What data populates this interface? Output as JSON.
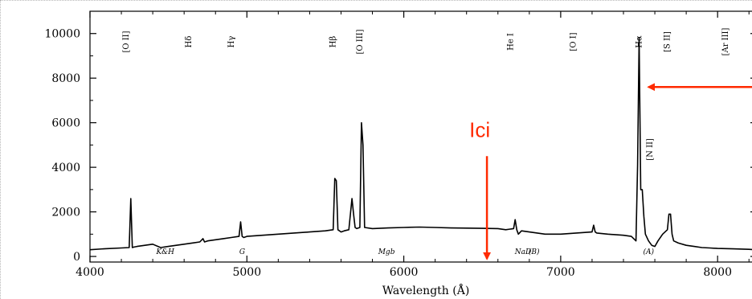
{
  "chart_data": {
    "type": "line",
    "xlabel": "Wavelength (Å)",
    "ylabel": "",
    "xlim": [
      4000,
      8250
    ],
    "ylim": [
      -250,
      11000
    ],
    "x_ticks": [
      {
        "value": 4000,
        "label": "4000"
      },
      {
        "value": 5000,
        "label": "5000"
      },
      {
        "value": 6000,
        "label": "6000"
      },
      {
        "value": 7000,
        "label": "7000"
      },
      {
        "value": 8000,
        "label": "8000"
      }
    ],
    "y_ticks": [
      {
        "value": 0,
        "label": "0"
      },
      {
        "value": 2000,
        "label": "2000"
      },
      {
        "value": 4000,
        "label": "4000"
      },
      {
        "value": 6000,
        "label": "6000"
      },
      {
        "value": 8000,
        "label": "8000"
      },
      {
        "value": 10000,
        "label": "10000"
      }
    ],
    "series": [
      {
        "x": [
          4000,
          4100,
          4200,
          4250,
          4260,
          4270,
          4280,
          4300,
          4350,
          4400,
          4450,
          4500,
          4550,
          4600,
          4650,
          4700,
          4720,
          4730,
          4750,
          4800,
          4850,
          4900,
          4950,
          4960,
          4970,
          4980,
          5000,
          5100,
          5200,
          5300,
          5400,
          5500,
          5550,
          5560,
          5570,
          5580,
          5600,
          5620,
          5650,
          5670,
          5680,
          5690,
          5700,
          5720,
          5730,
          5740,
          5750,
          5800,
          5900,
          6000,
          6100,
          6200,
          6300,
          6400,
          6500,
          6600,
          6650,
          6700,
          6710,
          6720,
          6730,
          6750,
          6800,
          6850,
          6900,
          7000,
          7100,
          7200,
          7210,
          7220,
          7230,
          7300,
          7400,
          7450,
          7480,
          7490,
          7500,
          7510,
          7520,
          7530,
          7540,
          7560,
          7580,
          7600,
          7620,
          7650,
          7680,
          7690,
          7700,
          7710,
          7720,
          7750,
          7800,
          7850,
          7900,
          7950,
          8000,
          8100,
          8200,
          8250
        ],
        "y": [
          300,
          350,
          380,
          400,
          2600,
          400,
          420,
          450,
          500,
          550,
          400,
          450,
          500,
          550,
          600,
          650,
          800,
          650,
          700,
          750,
          800,
          850,
          900,
          1550,
          900,
          850,
          900,
          950,
          1000,
          1050,
          1100,
          1150,
          1200,
          3500,
          3400,
          1200,
          1100,
          1150,
          1200,
          2600,
          1900,
          1300,
          1250,
          1300,
          6000,
          5000,
          1300,
          1250,
          1280,
          1300,
          1320,
          1300,
          1280,
          1270,
          1260,
          1250,
          1200,
          1250,
          1650,
          1200,
          1000,
          1150,
          1100,
          1050,
          1000,
          1000,
          1050,
          1100,
          1400,
          1100,
          1050,
          1000,
          950,
          900,
          700,
          4100,
          9800,
          3000,
          3000,
          1800,
          1000,
          700,
          500,
          450,
          700,
          1000,
          1200,
          1900,
          1900,
          1000,
          700,
          600,
          500,
          450,
          400,
          380,
          360,
          340,
          320,
          300
        ]
      }
    ],
    "line_labels": [
      {
        "x": 4230,
        "label": "[O II]"
      },
      {
        "x": 4630,
        "label": "Hδ"
      },
      {
        "x": 4900,
        "label": "Hγ"
      },
      {
        "x": 5550,
        "label": "Hβ"
      },
      {
        "x": 5720,
        "label": "[O III]"
      },
      {
        "x": 6680,
        "label": "He I"
      },
      {
        "x": 7080,
        "label": "[O I]"
      },
      {
        "x": 7500,
        "label": "Hα"
      },
      {
        "x": 7680,
        "label": "[S II]"
      },
      {
        "x": 8050,
        "label": "[Ar III]"
      }
    ],
    "nii_label": {
      "x": 7570,
      "y": 4800,
      "label": "[N II]"
    },
    "absorption_labels": [
      {
        "x": 4480,
        "label": "K&H"
      },
      {
        "x": 4970,
        "label": "G"
      },
      {
        "x": 5890,
        "label": "Mgb"
      },
      {
        "x": 6760,
        "label": "NaD"
      },
      {
        "x": 6830,
        "label": "(B)"
      },
      {
        "x": 7560,
        "label": "(A)"
      }
    ],
    "annotations": [
      {
        "text": "Ici",
        "kind": "arrow-down",
        "x": 6530,
        "from_y": 4500,
        "to_y": -100
      },
      {
        "text": "",
        "kind": "arrow-left",
        "y": 7600,
        "from_x": 8250,
        "to_x": 7560
      }
    ],
    "colors": {
      "line": "#000000",
      "annotation": "#ff2a00"
    }
  }
}
